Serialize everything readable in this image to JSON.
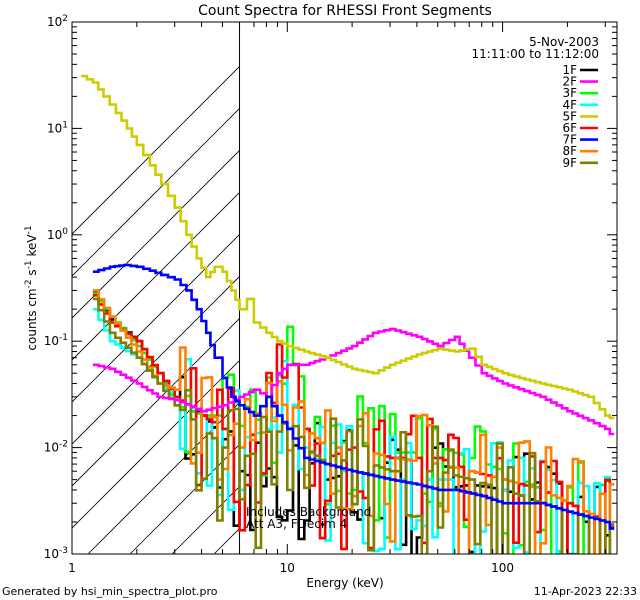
{
  "chart_data": {
    "type": "line",
    "title": "Count Spectra for RHESSI Front Segments",
    "xlabel": "Energy (keV)",
    "ylabel_parts": [
      "counts cm",
      "-2",
      " s",
      "-1",
      " keV",
      "-1"
    ],
    "xscale": "log",
    "yscale": "log",
    "xlim": [
      1,
      340
    ],
    "ylim": [
      0.001,
      100
    ],
    "x_ticks": [
      {
        "v": 1,
        "label": "1"
      },
      {
        "v": 10,
        "label": "10"
      },
      {
        "v": 100,
        "label": "100"
      }
    ],
    "y_ticks": [
      {
        "exp": -3,
        "base": "10",
        "sup": "-3"
      },
      {
        "exp": -2,
        "base": "10",
        "sup": "-2"
      },
      {
        "exp": -1,
        "base": "10",
        "sup": "-1"
      },
      {
        "exp": 0,
        "base": "10",
        "sup": "0"
      },
      {
        "exp": 1,
        "base": "10",
        "sup": "1"
      },
      {
        "exp": 2,
        "base": "10",
        "sup": "2"
      }
    ],
    "date": "5-Nov-2003",
    "time_range": "11:11:00 to 11:12:00",
    "annotation_lines": [
      "Includes Background",
      "Att A3, FDecim 4"
    ],
    "threshold_energy": 6,
    "legend_position": "top-right",
    "series": [
      {
        "name": "1F",
        "color": "#000000",
        "spiky": true,
        "points": [
          [
            1.25,
            0.29
          ],
          [
            1.5,
            0.16
          ],
          [
            2,
            0.1
          ],
          [
            2.5,
            0.05
          ],
          [
            3,
            0.03
          ],
          [
            4,
            0.02
          ],
          [
            5,
            0.012
          ],
          [
            6,
            0.006
          ],
          [
            8,
            0.004
          ],
          [
            10,
            0.012
          ],
          [
            12,
            0.008
          ],
          [
            15,
            0.005
          ],
          [
            20,
            0.006
          ],
          [
            30,
            0.005
          ],
          [
            40,
            0.0045
          ],
          [
            50,
            0.004
          ],
          [
            70,
            0.0045
          ],
          [
            100,
            0.004
          ],
          [
            150,
            0.003
          ],
          [
            200,
            0.0025
          ],
          [
            300,
            0.0015
          ],
          [
            330,
            0.0015
          ]
        ]
      },
      {
        "name": "2F",
        "color": "#ff00ff",
        "spiky": false,
        "points": [
          [
            1.25,
            0.06
          ],
          [
            1.5,
            0.055
          ],
          [
            2,
            0.04
          ],
          [
            2.5,
            0.03
          ],
          [
            3,
            0.028
          ],
          [
            4,
            0.022
          ],
          [
            5,
            0.025
          ],
          [
            6,
            0.03
          ],
          [
            7,
            0.035
          ],
          [
            8,
            0.03
          ],
          [
            9,
            0.05
          ],
          [
            10,
            0.06
          ],
          [
            12,
            0.06
          ],
          [
            15,
            0.07
          ],
          [
            20,
            0.09
          ],
          [
            25,
            0.12
          ],
          [
            30,
            0.13
          ],
          [
            40,
            0.11
          ],
          [
            50,
            0.09
          ],
          [
            60,
            0.11
          ],
          [
            70,
            0.07
          ],
          [
            80,
            0.05
          ],
          [
            100,
            0.04
          ],
          [
            150,
            0.03
          ],
          [
            200,
            0.022
          ],
          [
            250,
            0.018
          ],
          [
            300,
            0.015
          ],
          [
            330,
            0.012
          ]
        ]
      },
      {
        "name": "3F",
        "color": "#00ff00",
        "spiky": true,
        "points": [
          [
            1.25,
            0.28
          ],
          [
            1.5,
            0.17
          ],
          [
            2,
            0.09
          ],
          [
            2.5,
            0.05
          ],
          [
            3,
            0.025
          ],
          [
            4,
            0.02
          ],
          [
            5,
            0.02
          ],
          [
            6,
            0.016
          ],
          [
            8,
            0.02
          ],
          [
            10,
            0.05
          ],
          [
            12,
            0.015
          ],
          [
            15,
            0.01
          ],
          [
            20,
            0.012
          ],
          [
            30,
            0.009
          ],
          [
            40,
            0.009
          ],
          [
            50,
            0.01
          ],
          [
            70,
            0.008
          ],
          [
            100,
            0.006
          ],
          [
            150,
            0.004
          ],
          [
            200,
            0.003
          ],
          [
            300,
            0.002
          ],
          [
            330,
            0.0018
          ]
        ]
      },
      {
        "name": "4F",
        "color": "#00ffff",
        "spiky": true,
        "points": [
          [
            1.25,
            0.2
          ],
          [
            1.5,
            0.1
          ],
          [
            2,
            0.07
          ],
          [
            2.5,
            0.04
          ],
          [
            3,
            0.03
          ],
          [
            4,
            0.02
          ],
          [
            5,
            0.015
          ],
          [
            6,
            0.012
          ],
          [
            8,
            0.015
          ],
          [
            10,
            0.04
          ],
          [
            12,
            0.01
          ],
          [
            15,
            0.006
          ],
          [
            20,
            0.006
          ],
          [
            30,
            0.005
          ],
          [
            50,
            0.005
          ],
          [
            70,
            0.005
          ],
          [
            100,
            0.004
          ],
          [
            150,
            0.003
          ],
          [
            200,
            0.0025
          ],
          [
            300,
            0.002
          ],
          [
            330,
            0.0018
          ]
        ]
      },
      {
        "name": "5F",
        "color": "#cccc00",
        "spiky": false,
        "points": [
          [
            1.1,
            31
          ],
          [
            1.25,
            27
          ],
          [
            1.4,
            20
          ],
          [
            1.6,
            14
          ],
          [
            1.8,
            10
          ],
          [
            2,
            7
          ],
          [
            2.3,
            4.5
          ],
          [
            2.6,
            3
          ],
          [
            3,
            1.8
          ],
          [
            3.4,
            1
          ],
          [
            3.8,
            0.6
          ],
          [
            4.2,
            0.4
          ],
          [
            4.6,
            0.5
          ],
          [
            5,
            0.45
          ],
          [
            5.5,
            0.3
          ],
          [
            6,
            0.2
          ],
          [
            6.5,
            0.25
          ],
          [
            7,
            0.15
          ],
          [
            8,
            0.12
          ],
          [
            9,
            0.1
          ],
          [
            10,
            0.09
          ],
          [
            12,
            0.08
          ],
          [
            15,
            0.07
          ],
          [
            20,
            0.055
          ],
          [
            25,
            0.05
          ],
          [
            30,
            0.06
          ],
          [
            40,
            0.075
          ],
          [
            50,
            0.085
          ],
          [
            60,
            0.08
          ],
          [
            70,
            0.085
          ],
          [
            80,
            0.06
          ],
          [
            100,
            0.05
          ],
          [
            120,
            0.045
          ],
          [
            150,
            0.04
          ],
          [
            200,
            0.035
          ],
          [
            250,
            0.03
          ],
          [
            300,
            0.02
          ],
          [
            330,
            0.018
          ]
        ]
      },
      {
        "name": "6F",
        "color": "#ff0000",
        "spiky": true,
        "points": [
          [
            1.25,
            0.27
          ],
          [
            1.5,
            0.15
          ],
          [
            2,
            0.1
          ],
          [
            2.5,
            0.05
          ],
          [
            3,
            0.03
          ],
          [
            4,
            0.02
          ],
          [
            5,
            0.015
          ],
          [
            6,
            0.01
          ],
          [
            8,
            0.02
          ],
          [
            10,
            0.06
          ],
          [
            12,
            0.015
          ],
          [
            15,
            0.008
          ],
          [
            20,
            0.01
          ],
          [
            30,
            0.008
          ],
          [
            50,
            0.008
          ],
          [
            70,
            0.006
          ],
          [
            100,
            0.005
          ],
          [
            150,
            0.004
          ],
          [
            200,
            0.003
          ],
          [
            300,
            0.002
          ],
          [
            330,
            0.0016
          ]
        ]
      },
      {
        "name": "7F",
        "color": "#0000ff",
        "spiky": false,
        "points": [
          [
            1.25,
            0.45
          ],
          [
            1.5,
            0.5
          ],
          [
            1.75,
            0.52
          ],
          [
            2,
            0.5
          ],
          [
            2.3,
            0.46
          ],
          [
            2.6,
            0.42
          ],
          [
            3,
            0.38
          ],
          [
            3.4,
            0.3
          ],
          [
            3.8,
            0.2
          ],
          [
            4.2,
            0.12
          ],
          [
            4.6,
            0.07
          ],
          [
            5,
            0.045
          ],
          [
            5.5,
            0.03
          ],
          [
            6,
            0.025
          ],
          [
            7,
            0.02
          ],
          [
            8,
            0.03
          ],
          [
            9,
            0.02
          ],
          [
            10,
            0.015
          ],
          [
            12,
            0.008
          ],
          [
            15,
            0.007
          ],
          [
            20,
            0.006
          ],
          [
            30,
            0.005
          ],
          [
            40,
            0.0045
          ],
          [
            50,
            0.004
          ],
          [
            60,
            0.004
          ],
          [
            80,
            0.0035
          ],
          [
            100,
            0.003
          ],
          [
            150,
            0.003
          ],
          [
            200,
            0.0025
          ],
          [
            300,
            0.002
          ],
          [
            330,
            0.0015
          ]
        ]
      },
      {
        "name": "8F",
        "color": "#ff8000",
        "spiky": true,
        "points": [
          [
            1.25,
            0.3
          ],
          [
            1.5,
            0.17
          ],
          [
            2,
            0.08
          ],
          [
            2.5,
            0.04
          ],
          [
            3,
            0.035
          ],
          [
            4,
            0.025
          ],
          [
            5,
            0.015
          ],
          [
            6,
            0.01
          ],
          [
            8,
            0.015
          ],
          [
            10,
            0.03
          ],
          [
            12,
            0.015
          ],
          [
            15,
            0.01
          ],
          [
            20,
            0.01
          ],
          [
            30,
            0.008
          ],
          [
            50,
            0.007
          ],
          [
            70,
            0.006
          ],
          [
            100,
            0.005
          ],
          [
            150,
            0.004
          ],
          [
            200,
            0.003
          ],
          [
            300,
            0.002
          ],
          [
            330,
            0.0015
          ]
        ]
      },
      {
        "name": "9F",
        "color": "#808000",
        "spiky": true,
        "points": [
          [
            1.25,
            0.25
          ],
          [
            1.5,
            0.12
          ],
          [
            2,
            0.07
          ],
          [
            2.5,
            0.04
          ],
          [
            3,
            0.025
          ],
          [
            4,
            0.015
          ],
          [
            5,
            0.01
          ],
          [
            6,
            0.008
          ],
          [
            8,
            0.01
          ],
          [
            10,
            0.02
          ],
          [
            12,
            0.01
          ],
          [
            15,
            0.007
          ],
          [
            20,
            0.008
          ],
          [
            30,
            0.006
          ],
          [
            50,
            0.006
          ],
          [
            70,
            0.005
          ],
          [
            100,
            0.004
          ],
          [
            150,
            0.003
          ],
          [
            200,
            0.0025
          ],
          [
            300,
            0.002
          ],
          [
            330,
            0.0018
          ]
        ]
      }
    ]
  },
  "footer": {
    "generated_by": "Generated by hsi_min_spectra_plot.pro",
    "timestamp": "11-Apr-2023 22:33"
  }
}
